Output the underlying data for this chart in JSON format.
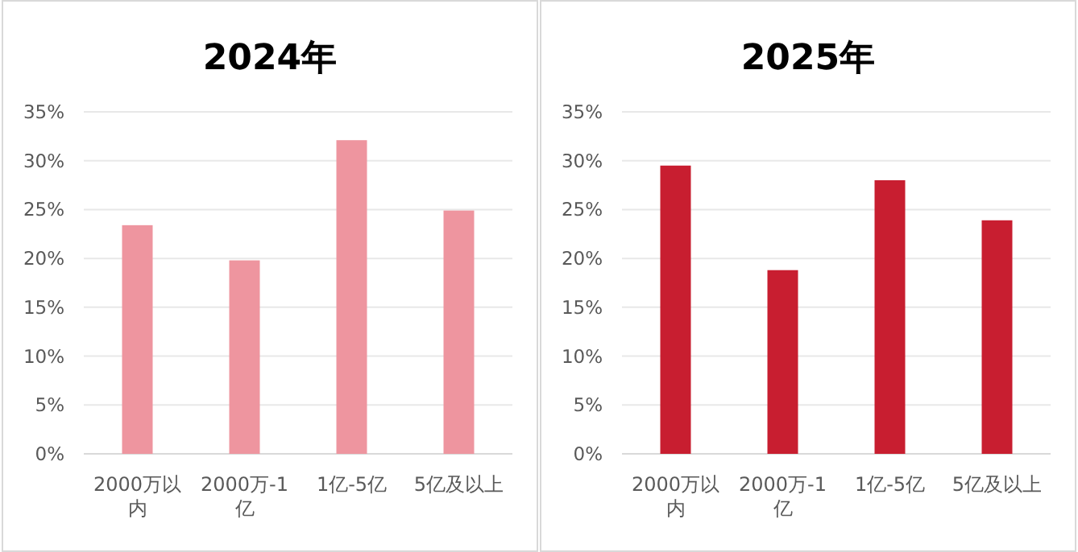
{
  "chart_data": [
    {
      "type": "bar",
      "title": "2024年",
      "categories": [
        "2000万以内",
        "2000万-1亿",
        "1亿-5亿",
        "5亿及以上"
      ],
      "values": [
        23.4,
        19.8,
        32.1,
        24.9
      ],
      "color": "#ee959f",
      "ylim": [
        0,
        35
      ],
      "yticks": [
        {
          "value": 0,
          "label": "0%"
        },
        {
          "value": 5,
          "label": "5%"
        },
        {
          "value": 10,
          "label": "10%"
        },
        {
          "value": 15,
          "label": "15%"
        },
        {
          "value": 20,
          "label": "20%"
        },
        {
          "value": 25,
          "label": "25%"
        },
        {
          "value": 30,
          "label": "30%"
        },
        {
          "value": 35,
          "label": "35%"
        }
      ],
      "grid": "y"
    },
    {
      "type": "bar",
      "title": "2025年",
      "categories": [
        "2000万以内",
        "2000万-1亿",
        "1亿-5亿",
        "5亿及以上"
      ],
      "values": [
        29.5,
        18.8,
        28.0,
        23.9
      ],
      "color": "#c81e30",
      "ylim": [
        0,
        35
      ],
      "yticks": [
        {
          "value": 0,
          "label": "0%"
        },
        {
          "value": 5,
          "label": "5%"
        },
        {
          "value": 10,
          "label": "10%"
        },
        {
          "value": 15,
          "label": "15%"
        },
        {
          "value": 20,
          "label": "20%"
        },
        {
          "value": 25,
          "label": "25%"
        },
        {
          "value": 30,
          "label": "30%"
        },
        {
          "value": 35,
          "label": "35%"
        }
      ],
      "grid": "y"
    }
  ]
}
